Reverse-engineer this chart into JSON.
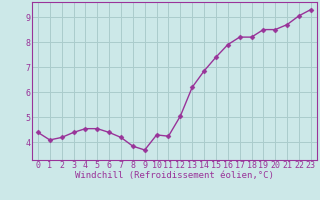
{
  "x": [
    0,
    1,
    2,
    3,
    4,
    5,
    6,
    7,
    8,
    9,
    10,
    11,
    12,
    13,
    14,
    15,
    16,
    17,
    18,
    19,
    20,
    21,
    22,
    23
  ],
  "y": [
    4.4,
    4.1,
    4.2,
    4.4,
    4.55,
    4.55,
    4.4,
    4.2,
    3.85,
    3.7,
    4.3,
    4.25,
    5.05,
    6.2,
    6.85,
    7.4,
    7.9,
    8.2,
    8.2,
    8.5,
    8.5,
    8.7,
    9.05,
    9.3
  ],
  "line_color": "#993399",
  "marker": "D",
  "marker_size": 2.5,
  "bg_color": "#cce8e8",
  "grid_color": "#aacccc",
  "axis_color": "#993399",
  "xlabel": "Windchill (Refroidissement éolien,°C)",
  "xlim": [
    -0.5,
    23.5
  ],
  "ylim": [
    3.3,
    9.6
  ],
  "yticks": [
    4,
    5,
    6,
    7,
    8,
    9
  ],
  "xticks": [
    0,
    1,
    2,
    3,
    4,
    5,
    6,
    7,
    8,
    9,
    10,
    11,
    12,
    13,
    14,
    15,
    16,
    17,
    18,
    19,
    20,
    21,
    22,
    23
  ],
  "font_color": "#993399",
  "label_fontsize": 6.5,
  "tick_fontsize": 6.0,
  "linewidth": 1.0
}
